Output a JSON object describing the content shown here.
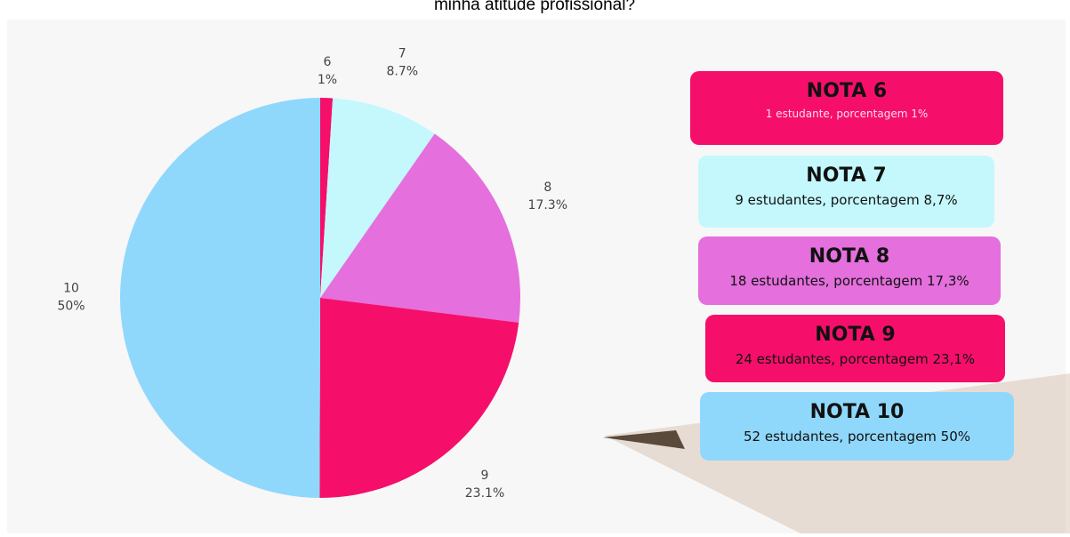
{
  "chart_data": {
    "type": "pie",
    "title": "minha atitude profissional?",
    "categories": [
      "6",
      "7",
      "8",
      "9",
      "10"
    ],
    "values": [
      1,
      8.7,
      17.3,
      23.1,
      50
    ],
    "value_labels": [
      "1%",
      "8.7%",
      "17.3%",
      "23.1%",
      "50%"
    ],
    "colors": [
      "#f50f6a",
      "#c4f8fc",
      "#e46fdd",
      "#f50f6a",
      "#90d8fb"
    ],
    "cards": [
      {
        "title": "NOTA 6",
        "text": "1 estudante, porcentagem 1%",
        "color": "#f50f6a"
      },
      {
        "title": "NOTA 7",
        "text": "9 estudantes, porcentagem 8,7%",
        "color": "#c4f8fc"
      },
      {
        "title": "NOTA 8",
        "text": "18 estudantes, porcentagem 17,3%",
        "color": "#e46fdd"
      },
      {
        "title": "NOTA 9",
        "text": "24 estudantes, porcentagem 23,1%",
        "color": "#f50f6a"
      },
      {
        "title": "NOTA 10",
        "text": "52 estudantes, porcentagem 50%",
        "color": "#90d8fb"
      }
    ]
  }
}
